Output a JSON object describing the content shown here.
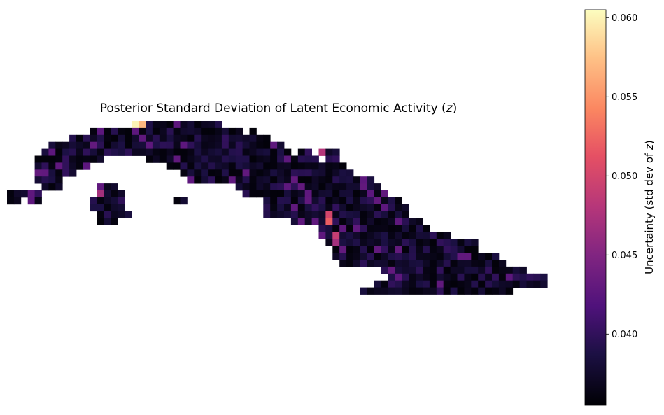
{
  "chart_data": {
    "type": "heatmap",
    "title": "Posterior Standard Deviation of Latent Economic Activity (",
    "title_var": "z",
    "title_end": ")",
    "xlabel": "",
    "ylabel": "",
    "axes_visible": false,
    "grid": false,
    "colormap": "magma",
    "colorbar": {
      "label": "Uncertainty (std dev of ",
      "label_var": "z",
      "label_end": ")",
      "range": [
        0.0355,
        0.0605
      ],
      "ticks": [
        0.04,
        0.045,
        0.05,
        0.055,
        0.06
      ],
      "tick_labels": [
        "0.040",
        "0.045",
        "0.050",
        "0.055",
        "0.060"
      ],
      "placement": "right"
    },
    "grid_shape": {
      "cols": 78,
      "rows": 24
    },
    "value_range_estimate": [
      0.0355,
      0.0605
    ],
    "hotspots": [
      {
        "col": 18,
        "row": 0,
        "value": 0.06
      },
      {
        "col": 19,
        "row": 0,
        "value": 0.057
      },
      {
        "col": 45,
        "row": 4,
        "value": 0.048
      },
      {
        "col": 46,
        "row": 13,
        "value": 0.05
      },
      {
        "col": 46,
        "row": 14,
        "value": 0.052
      },
      {
        "col": 47,
        "row": 16,
        "value": 0.049
      },
      {
        "col": 47,
        "row": 17,
        "value": 0.047
      },
      {
        "col": 14,
        "row": 5,
        "value": 0.048
      },
      {
        "col": 13,
        "row": 10,
        "value": 0.047
      },
      {
        "col": 26,
        "row": 11,
        "value": 0.045
      }
    ]
  }
}
